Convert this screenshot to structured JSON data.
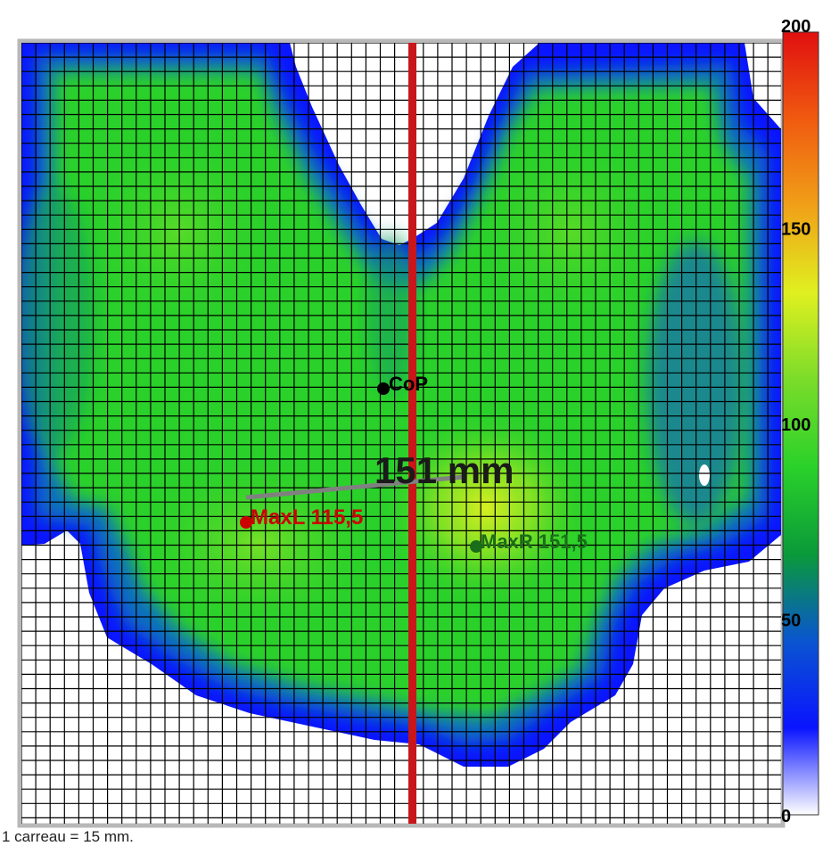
{
  "chart_data": {
    "type": "heatmap",
    "grid_spacing_mm": 15,
    "colorbar": {
      "min": 0,
      "max": 200,
      "ticks": [
        "200",
        "150",
        "100",
        "50",
        "0"
      ],
      "tick_values": [
        200,
        150,
        100,
        50,
        0
      ],
      "colors": [
        "#ffffff",
        "#0a14ff",
        "#0a55d0",
        "#0a9a3a",
        "#2ad12a",
        "#7bdc2a",
        "#e0f020",
        "#f0a018",
        "#f05a10",
        "#e01010"
      ]
    },
    "points": [
      {
        "name": "CoP",
        "label": "CoP",
        "color": "#000000"
      },
      {
        "name": "MaxL",
        "label": "MaxL 115,5",
        "value": 115.5,
        "color": "#cc0000"
      },
      {
        "name": "MaxR",
        "label": "MaxR 151,5",
        "value": 151.5,
        "color": "#1a6e1a"
      }
    ],
    "distance_label": "151 mm",
    "grid": true
  },
  "footer": "1 carreau = 15 mm."
}
